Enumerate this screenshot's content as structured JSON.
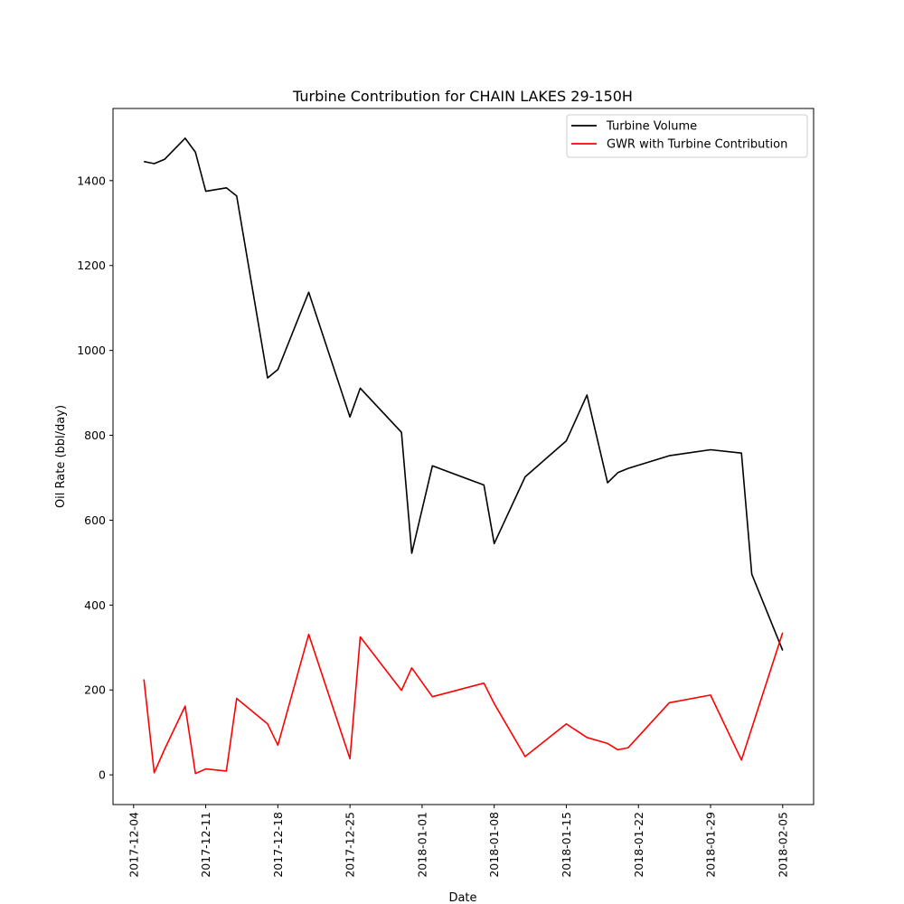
{
  "chart_data": {
    "type": "line",
    "title": "Turbine Contribution for CHAIN LAKES 29-150H",
    "xlabel": "Date",
    "ylabel": "Oil Rate (bbl/day)",
    "xlim": [
      "2017-12-02",
      "2018-02-08"
    ],
    "ylim": [
      -70,
      1570
    ],
    "x_ticks": [
      "2017-12-04",
      "2017-12-11",
      "2017-12-18",
      "2017-12-25",
      "2018-01-01",
      "2018-01-08",
      "2018-01-15",
      "2018-01-22",
      "2018-01-29",
      "2018-02-05"
    ],
    "y_ticks": [
      0,
      200,
      400,
      600,
      800,
      1000,
      1200,
      1400
    ],
    "grid": false,
    "legend_position": "upper right",
    "series": [
      {
        "name": "Turbine Volume",
        "color": "#000000",
        "points": [
          [
            "2017-12-05",
            1445
          ],
          [
            "2017-12-06",
            1440
          ],
          [
            "2017-12-07",
            1450
          ],
          [
            "2017-12-09",
            1500
          ],
          [
            "2017-12-10",
            1467
          ],
          [
            "2017-12-11",
            1375
          ],
          [
            "2017-12-13",
            1383
          ],
          [
            "2017-12-14",
            1364
          ],
          [
            "2017-12-17",
            935
          ],
          [
            "2017-12-18",
            955
          ],
          [
            "2017-12-21",
            1137
          ],
          [
            "2017-12-25",
            843
          ],
          [
            "2017-12-26",
            911
          ],
          [
            "2017-12-30",
            807
          ],
          [
            "2017-12-31",
            522
          ],
          [
            "2018-01-02",
            728
          ],
          [
            "2018-01-07",
            683
          ],
          [
            "2018-01-08",
            545
          ],
          [
            "2018-01-11",
            702
          ],
          [
            "2018-01-15",
            787
          ],
          [
            "2018-01-17",
            895
          ],
          [
            "2018-01-19",
            688
          ],
          [
            "2018-01-20",
            712
          ],
          [
            "2018-01-21",
            722
          ],
          [
            "2018-01-25",
            752
          ],
          [
            "2018-01-29",
            766
          ],
          [
            "2018-02-01",
            758
          ],
          [
            "2018-02-02",
            473
          ],
          [
            "2018-02-05",
            293
          ]
        ]
      },
      {
        "name": "GWR with Turbine Contribution",
        "color": "#ff0000",
        "points": [
          [
            "2017-12-05",
            225
          ],
          [
            "2017-12-06",
            5
          ],
          [
            "2017-12-07",
            60
          ],
          [
            "2017-12-09",
            162
          ],
          [
            "2017-12-10",
            3
          ],
          [
            "2017-12-11",
            14
          ],
          [
            "2017-12-13",
            9
          ],
          [
            "2017-12-14",
            180
          ],
          [
            "2017-12-17",
            120
          ],
          [
            "2017-12-18",
            70
          ],
          [
            "2017-12-21",
            331
          ],
          [
            "2017-12-25",
            38
          ],
          [
            "2017-12-26",
            325
          ],
          [
            "2017-12-30",
            199
          ],
          [
            "2017-12-31",
            252
          ],
          [
            "2018-01-02",
            184
          ],
          [
            "2018-01-07",
            216
          ],
          [
            "2018-01-08",
            168
          ],
          [
            "2018-01-11",
            43
          ],
          [
            "2018-01-15",
            120
          ],
          [
            "2018-01-17",
            88
          ],
          [
            "2018-01-19",
            74
          ],
          [
            "2018-01-20",
            59
          ],
          [
            "2018-01-21",
            64
          ],
          [
            "2018-01-25",
            170
          ],
          [
            "2018-01-29",
            188
          ],
          [
            "2018-02-01",
            35
          ],
          [
            "2018-02-05",
            335
          ]
        ]
      }
    ]
  }
}
